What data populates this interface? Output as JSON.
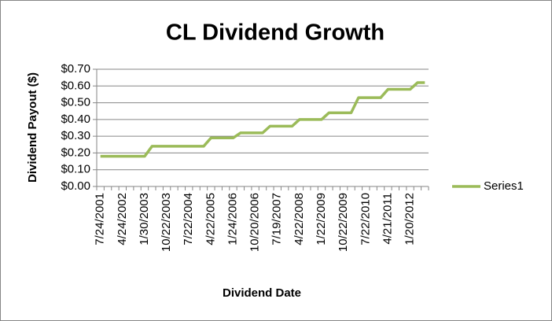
{
  "chart_data": {
    "type": "line",
    "title": "CL Dividend Growth",
    "x_label": "Dividend Date",
    "y_label": "Dividend Payout ($)",
    "categories": [
      "7/24/2001",
      null,
      null,
      "4/24/2002",
      null,
      null,
      "1/30/2003",
      null,
      null,
      "10/22/2003",
      null,
      null,
      "7/22/2004",
      null,
      null,
      "4/22/2005",
      null,
      null,
      "1/24/2006",
      null,
      null,
      "10/20/2006",
      null,
      null,
      "7/19/2007",
      null,
      null,
      "4/22/2008",
      null,
      null,
      "1/22/2009",
      null,
      null,
      "10/22/2009",
      null,
      null,
      "7/22/2010",
      null,
      null,
      "4/21/2011",
      null,
      null,
      "1/20/2012",
      null,
      null
    ],
    "series": [
      {
        "name": "Series1",
        "color": "#9bbb59",
        "values": [
          0.18,
          0.18,
          0.18,
          0.18,
          0.18,
          0.18,
          0.18,
          0.24,
          0.24,
          0.24,
          0.24,
          0.24,
          0.24,
          0.24,
          0.24,
          0.29,
          0.29,
          0.29,
          0.29,
          0.32,
          0.32,
          0.32,
          0.32,
          0.36,
          0.36,
          0.36,
          0.36,
          0.4,
          0.4,
          0.4,
          0.4,
          0.44,
          0.44,
          0.44,
          0.44,
          0.53,
          0.53,
          0.53,
          0.53,
          0.58,
          0.58,
          0.58,
          0.58,
          0.62,
          0.62
        ]
      }
    ],
    "ylim": [
      0,
      0.7
    ],
    "yticks": [
      {
        "value": 0,
        "label": "$0.00"
      },
      {
        "value": 0.1,
        "label": "$0.10"
      },
      {
        "value": 0.2,
        "label": "$0.20"
      },
      {
        "value": 0.3,
        "label": "$0.30"
      },
      {
        "value": 0.4,
        "label": "$0.40"
      },
      {
        "value": 0.5,
        "label": "$0.50"
      },
      {
        "value": 0.6,
        "label": "$0.60"
      },
      {
        "value": 0.7,
        "label": "$0.70"
      }
    ],
    "grid": true,
    "legend": "right"
  }
}
